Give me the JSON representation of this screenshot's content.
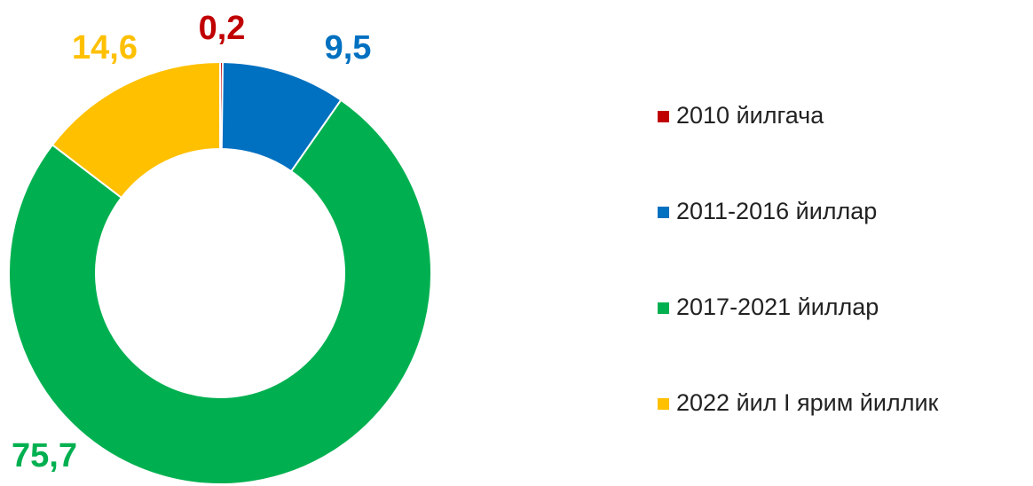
{
  "chart_data": {
    "type": "donut",
    "categories": [
      "2010 йилгача",
      "2011-2016 йиллар",
      "2017-2021 йиллар",
      "2022 йил I ярим йиллик"
    ],
    "values": [
      0.2,
      9.5,
      75.7,
      14.6
    ],
    "value_labels": [
      "0,2",
      "9,5",
      "75,7",
      "14,6"
    ],
    "colors": [
      "#c00000",
      "#0070c0",
      "#00b050",
      "#ffc000"
    ],
    "legend": "right"
  }
}
